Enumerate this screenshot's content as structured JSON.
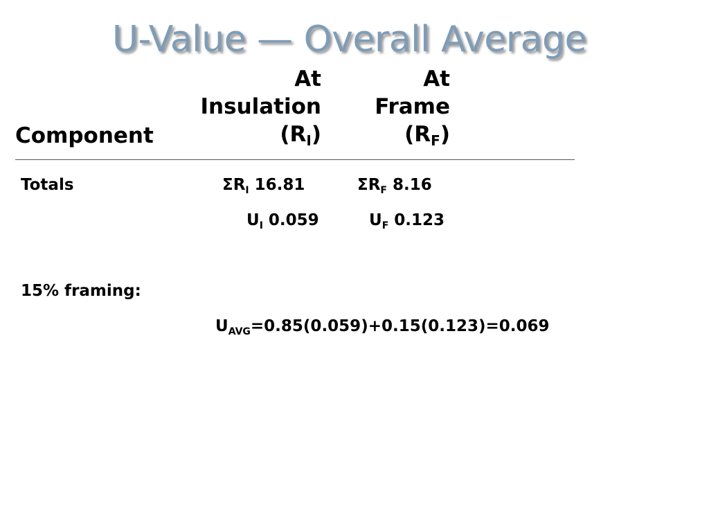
{
  "slide": {
    "title": "U-Value — Overall Average",
    "header": {
      "component": "Component",
      "insulation": {
        "line1": "At",
        "line2": "Insulation",
        "label": "(R",
        "sub": "I",
        "close": ")"
      },
      "frame": {
        "line1": "At",
        "line2": "Frame",
        "label": "(R",
        "sub": "F",
        "close": ")"
      }
    },
    "totals": {
      "label": "Totals",
      "sum_ri": {
        "prefix": "ΣR",
        "sub": "I",
        "value": "16.81"
      },
      "sum_rf": {
        "prefix": "ΣR",
        "sub": "F",
        "value": "8.16"
      },
      "u_i": {
        "prefix": "U",
        "sub": "I",
        "value": "0.059"
      },
      "u_f": {
        "prefix": "U",
        "sub": "F",
        "value": "0.123"
      }
    },
    "framing": {
      "label": "15% framing:",
      "formula": {
        "prefix": "U",
        "sub": "AVG",
        "expression": "=0.85(0.059)+0.15(0.123)=0.069"
      }
    }
  }
}
